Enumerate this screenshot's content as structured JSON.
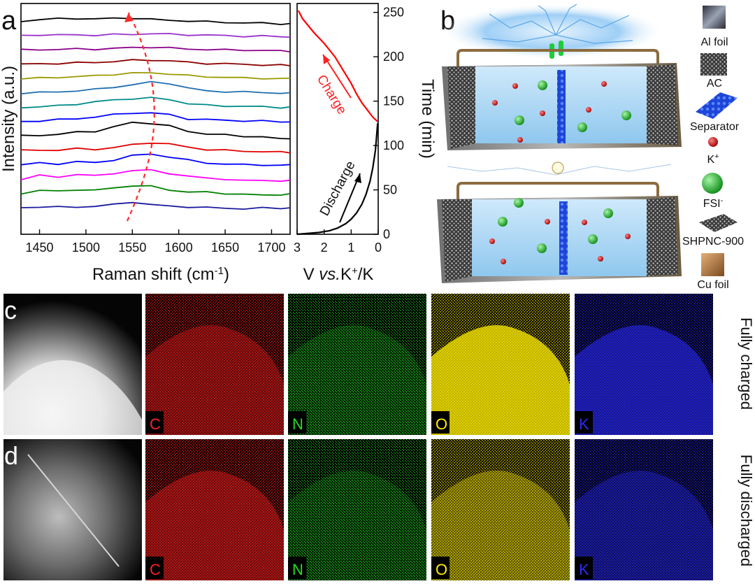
{
  "panel_labels": {
    "a": "a",
    "b": "b",
    "c": "c",
    "d": "d"
  },
  "raman": {
    "ylabel": "Intensity (a.u.)",
    "xlabel_main": "Raman shift (cm",
    "xlabel_sup": "-1",
    "xlabel_end": ")",
    "xticks": [
      "1450",
      "1500",
      "1550",
      "1600",
      "1650",
      "1700"
    ]
  },
  "voltage": {
    "xlabel_pre": "V ",
    "xlabel_it": "vs.",
    "xlabel_k": "K",
    "xlabel_sup": "+",
    "xlabel_post": "/K",
    "xticks": [
      "3",
      "2",
      "1",
      "0"
    ],
    "yticks": [
      "0",
      "50",
      "100",
      "150",
      "200",
      "250"
    ],
    "ylabel": "Time (min)",
    "charge_label": "Charge",
    "discharge_label": "Discharge"
  },
  "legend": {
    "al_foil": "Al foil",
    "ac": "AC",
    "separator": "Separator",
    "k_ion": "K",
    "k_sup": "+",
    "fsi": "FSI",
    "fsi_sup": "-",
    "shpnc": "SHPNC-900",
    "cu_foil": "Cu foil"
  },
  "maps": {
    "elements": [
      "C",
      "N",
      "O",
      "K"
    ],
    "element_colors": [
      "#ff2020",
      "#22dd22",
      "#ffee00",
      "#2a2aff"
    ],
    "row_c": "Fully charged",
    "row_d": "Fully discharged"
  },
  "chart_data": [
    {
      "type": "line",
      "title": "",
      "xlabel": "Raman shift (cm-1)",
      "ylabel": "Intensity (a.u.)",
      "xlim": [
        1430,
        1720
      ],
      "series_colors": [
        "#1a1aa0",
        "#008000",
        "#ff00ff",
        "#0000ff",
        "#e00000",
        "#000000",
        "#0000ff",
        "#008b8b",
        "#1f6fb0",
        "#9a9a00",
        "#8b0000",
        "#8b008b",
        "#9932cc",
        "#000000"
      ],
      "x": [
        1430,
        1450,
        1470,
        1490,
        1510,
        1530,
        1550,
        1570,
        1590,
        1610,
        1630,
        1650,
        1670,
        1690,
        1710,
        1720
      ],
      "series": [
        {
          "values": [
            0.0,
            0.1,
            0.05,
            0.08,
            0.15,
            0.3,
            0.6,
            0.3,
            0.15,
            0.1,
            0.0,
            -0.05,
            -0.1,
            -0.05,
            -0.05,
            0.0
          ]
        },
        {
          "values": [
            0.0,
            0.3,
            0.2,
            0.4,
            0.3,
            0.55,
            0.8,
            0.7,
            0.35,
            0.15,
            0.1,
            0.0,
            -0.1,
            -0.2,
            -0.1,
            -0.1
          ]
        },
        {
          "values": [
            0.0,
            0.35,
            0.2,
            0.5,
            0.3,
            0.6,
            0.85,
            0.9,
            0.6,
            0.25,
            0.1,
            0.0,
            -0.2,
            -0.1,
            -0.2,
            -0.2
          ]
        },
        {
          "values": [
            0.0,
            0.15,
            0.1,
            0.3,
            0.2,
            0.5,
            0.9,
            1.1,
            0.8,
            0.45,
            0.2,
            0.05,
            0.0,
            0.0,
            -0.1,
            0.0
          ]
        },
        {
          "values": [
            0.0,
            0.0,
            0.05,
            0.15,
            0.1,
            0.3,
            0.55,
            0.8,
            0.65,
            0.3,
            0.1,
            0.0,
            -0.1,
            -0.1,
            -0.2,
            -0.2
          ]
        },
        {
          "values": [
            0.0,
            0.1,
            0.15,
            0.4,
            0.5,
            0.9,
            1.4,
            1.3,
            1.0,
            0.5,
            0.2,
            0.1,
            0.0,
            -0.1,
            -0.3,
            -0.2
          ]
        },
        {
          "values": [
            0.0,
            0.1,
            0.2,
            0.3,
            0.5,
            0.7,
            0.9,
            0.9,
            0.7,
            0.3,
            0.2,
            0.15,
            0.1,
            0.05,
            0.0,
            0.0
          ]
        },
        {
          "values": [
            0.0,
            0.05,
            0.15,
            0.35,
            0.55,
            0.75,
            0.9,
            0.95,
            0.8,
            0.4,
            0.2,
            0.15,
            0.1,
            0.05,
            0.0,
            0.0
          ]
        },
        {
          "values": [
            0.0,
            0.05,
            0.1,
            0.25,
            0.35,
            0.6,
            0.85,
            1.1,
            1.0,
            0.5,
            0.2,
            0.15,
            0.1,
            0.05,
            0.0,
            -0.05
          ]
        },
        {
          "values": [
            0.0,
            0.05,
            0.15,
            0.2,
            0.3,
            0.45,
            0.55,
            0.6,
            0.5,
            0.3,
            0.2,
            0.15,
            0.05,
            0.05,
            0.0,
            0.0
          ]
        },
        {
          "values": [
            0.0,
            0.05,
            0.1,
            0.15,
            0.2,
            0.3,
            0.4,
            0.45,
            0.35,
            0.2,
            0.1,
            0.05,
            0.0,
            -0.05,
            -0.1,
            -0.1
          ]
        },
        {
          "values": [
            0.0,
            0.05,
            0.05,
            0.1,
            0.1,
            0.15,
            0.25,
            0.3,
            0.2,
            0.1,
            0.05,
            0.0,
            0.0,
            -0.05,
            -0.1,
            -0.1
          ]
        },
        {
          "values": [
            0.0,
            0.1,
            0.05,
            0.1,
            0.05,
            0.1,
            0.15,
            0.2,
            0.15,
            0.1,
            0.05,
            0.0,
            -0.05,
            -0.05,
            -0.1,
            -0.1
          ]
        },
        {
          "values": [
            0.0,
            0.2,
            0.25,
            0.3,
            0.25,
            0.3,
            0.35,
            0.2,
            0.1,
            0.05,
            -0.05,
            -0.1,
            -0.15,
            -0.2,
            -0.25,
            -0.25
          ]
        }
      ]
    },
    {
      "type": "line",
      "title": "",
      "xlabel": "V vs.K+/K",
      "ylabel": "Time (min)",
      "xlim": [
        3,
        0
      ],
      "ylim": [
        0,
        260
      ],
      "series": [
        {
          "name": "Discharge",
          "color": "#000000",
          "x": [
            3.0,
            2.6,
            2.2,
            1.8,
            1.5,
            1.2,
            1.0,
            0.8,
            0.6,
            0.45,
            0.3,
            0.2,
            0.1,
            0.02
          ],
          "values": [
            0,
            1,
            2,
            4,
            7,
            12,
            17,
            24,
            34,
            45,
            60,
            75,
            95,
            125
          ]
        },
        {
          "name": "Charge",
          "color": "#ff0000",
          "x": [
            0.02,
            0.2,
            0.4,
            0.6,
            0.8,
            1.0,
            1.3,
            1.6,
            2.0,
            2.4,
            2.8,
            2.95
          ],
          "values": [
            127,
            132,
            140,
            148,
            158,
            170,
            185,
            200,
            215,
            228,
            243,
            252
          ]
        }
      ]
    }
  ]
}
